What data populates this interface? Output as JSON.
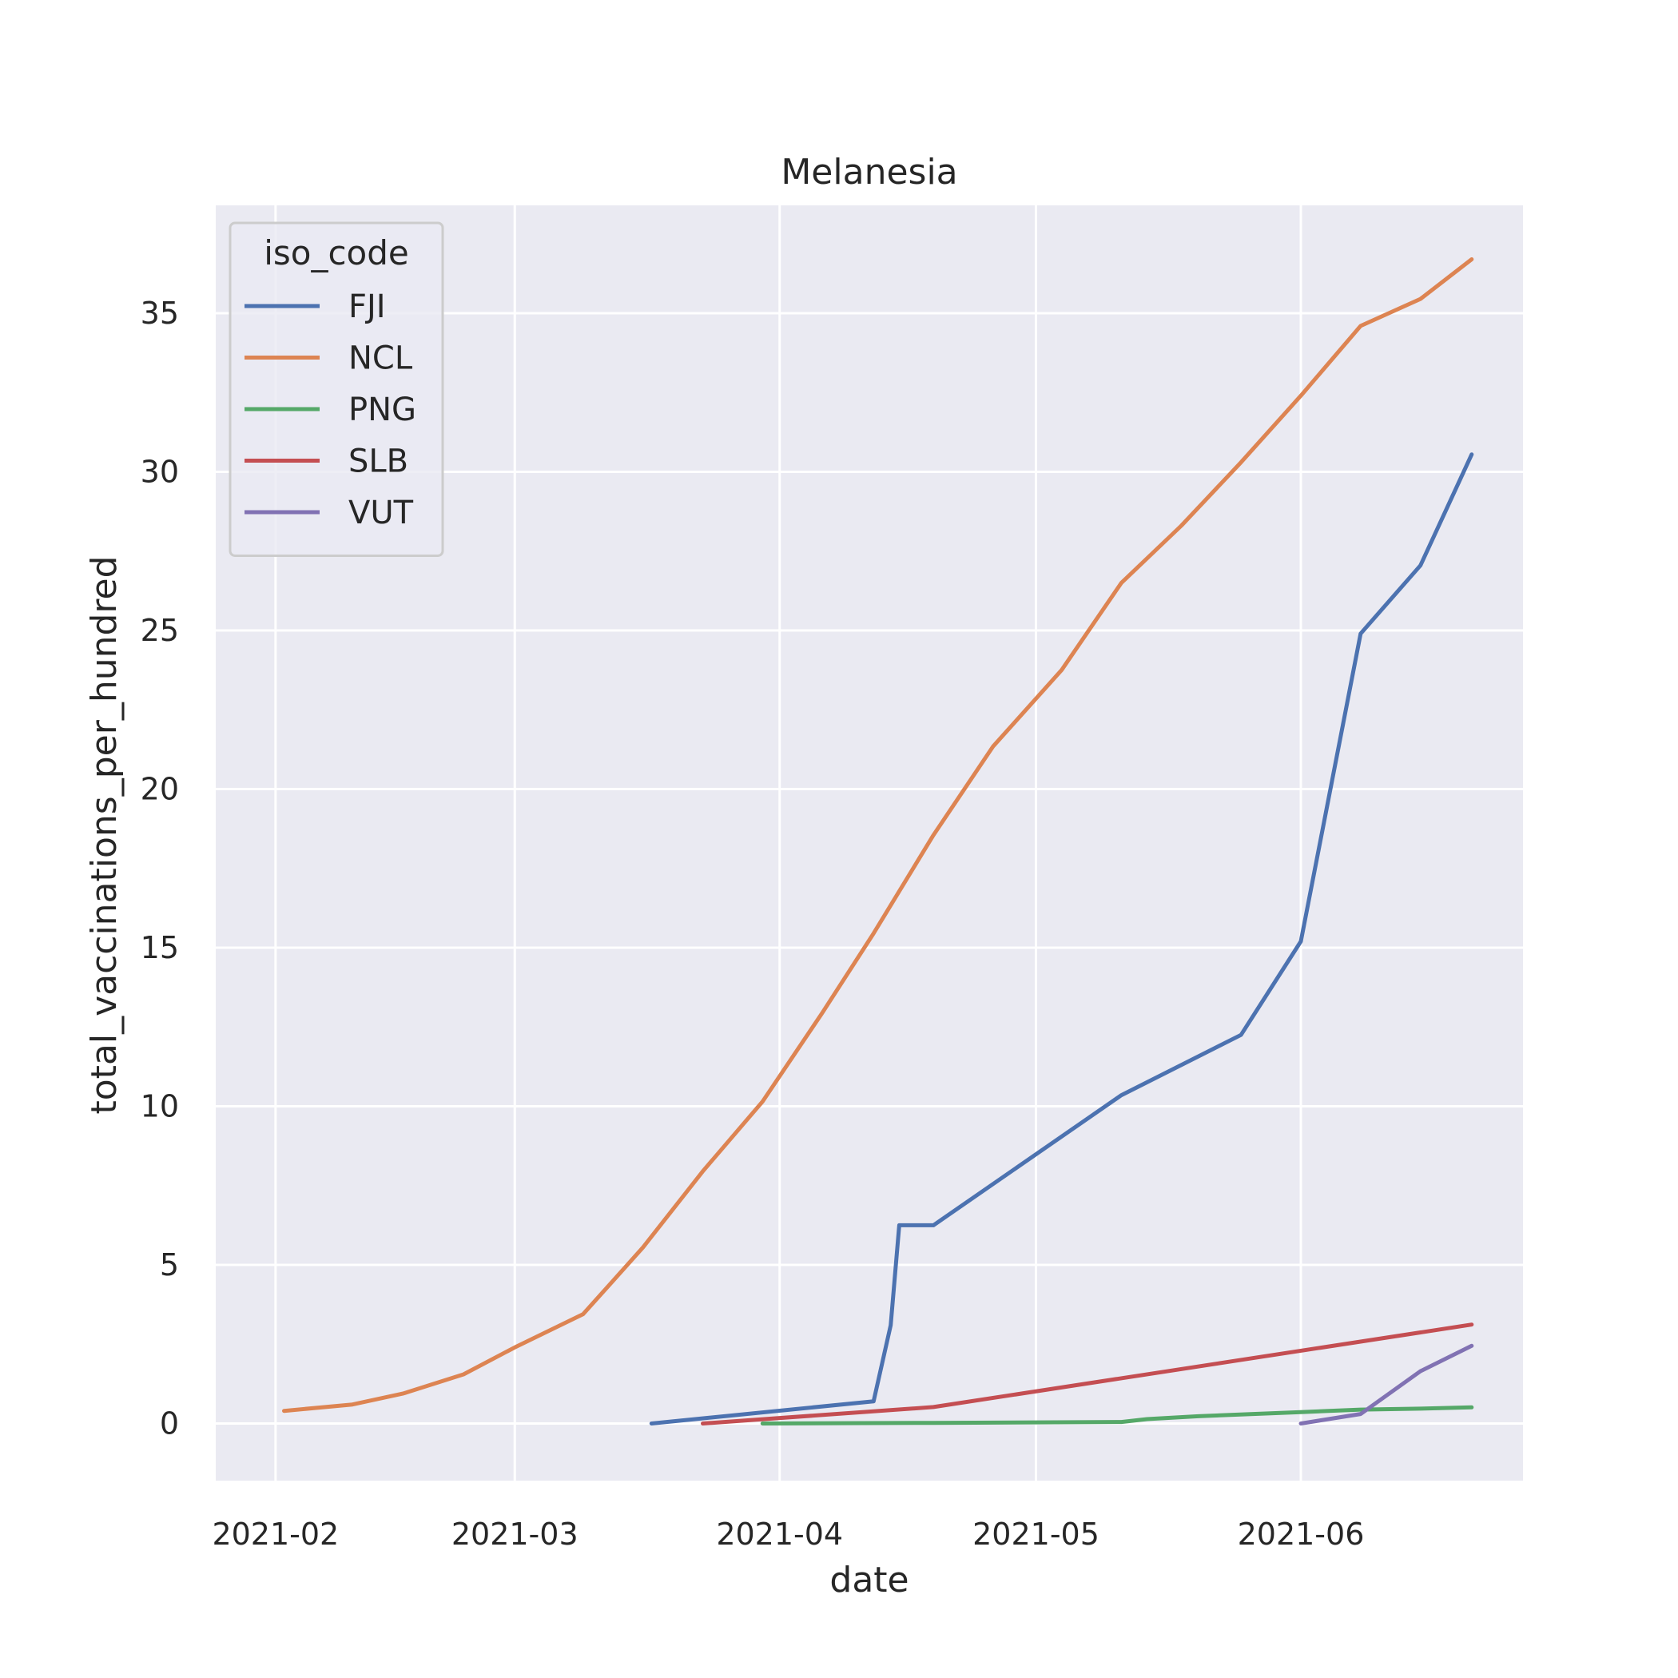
{
  "chart_data": {
    "type": "line",
    "title": "Melanesia",
    "xlabel": "date",
    "ylabel": "total_vaccinations_per_hundred",
    "x_ticks": [
      "2021-02",
      "2021-03",
      "2021-04",
      "2021-05",
      "2021-06"
    ],
    "y_ticks": [
      0,
      5,
      10,
      15,
      20,
      25,
      30,
      35
    ],
    "xlim": [
      "2021-01-25",
      "2021-06-27"
    ],
    "ylim": [
      -1.8,
      38.4
    ],
    "grid": true,
    "legend": {
      "title": "iso_code",
      "position": "top-left"
    },
    "series": [
      {
        "name": "FJI",
        "color": "#4c72b0",
        "points": [
          [
            "2021-03-17",
            0.0
          ],
          [
            "2021-04-12",
            0.7
          ],
          [
            "2021-04-14",
            3.1
          ],
          [
            "2021-04-15",
            6.25
          ],
          [
            "2021-04-19",
            6.25
          ],
          [
            "2021-05-11",
            10.35
          ],
          [
            "2021-05-25",
            12.25
          ],
          [
            "2021-06-01",
            15.2
          ],
          [
            "2021-06-08",
            24.9
          ],
          [
            "2021-06-15",
            27.05
          ],
          [
            "2021-06-21",
            30.55
          ]
        ]
      },
      {
        "name": "NCL",
        "color": "#dd8452",
        "points": [
          [
            "2021-02-02",
            0.4
          ],
          [
            "2021-02-10",
            0.6
          ],
          [
            "2021-02-16",
            0.95
          ],
          [
            "2021-02-23",
            1.55
          ],
          [
            "2021-03-01",
            2.4
          ],
          [
            "2021-03-09",
            3.45
          ],
          [
            "2021-03-16",
            5.55
          ],
          [
            "2021-03-23",
            7.95
          ],
          [
            "2021-03-30",
            10.15
          ],
          [
            "2021-04-06",
            12.95
          ],
          [
            "2021-04-12",
            15.45
          ],
          [
            "2021-04-19",
            18.55
          ],
          [
            "2021-04-26",
            21.35
          ],
          [
            "2021-05-04",
            23.75
          ],
          [
            "2021-05-11",
            26.5
          ],
          [
            "2021-05-18",
            28.3
          ],
          [
            "2021-05-25",
            30.3
          ],
          [
            "2021-06-01",
            32.4
          ],
          [
            "2021-06-08",
            34.6
          ],
          [
            "2021-06-15",
            35.45
          ],
          [
            "2021-06-21",
            36.7
          ]
        ]
      },
      {
        "name": "PNG",
        "color": "#55a868",
        "points": [
          [
            "2021-03-30",
            0.0
          ],
          [
            "2021-04-19",
            0.02
          ],
          [
            "2021-05-11",
            0.05
          ],
          [
            "2021-05-14",
            0.14
          ],
          [
            "2021-05-20",
            0.23
          ],
          [
            "2021-06-01",
            0.36
          ],
          [
            "2021-06-08",
            0.44
          ],
          [
            "2021-06-15",
            0.47
          ],
          [
            "2021-06-21",
            0.51
          ]
        ]
      },
      {
        "name": "SLB",
        "color": "#c44e52",
        "points": [
          [
            "2021-03-23",
            0.0
          ],
          [
            "2021-04-19",
            0.52
          ],
          [
            "2021-06-21",
            3.12
          ]
        ]
      },
      {
        "name": "VUT",
        "color": "#8172b3",
        "points": [
          [
            "2021-06-01",
            0.0
          ],
          [
            "2021-06-08",
            0.3
          ],
          [
            "2021-06-15",
            1.65
          ],
          [
            "2021-06-21",
            2.45
          ]
        ]
      }
    ]
  }
}
